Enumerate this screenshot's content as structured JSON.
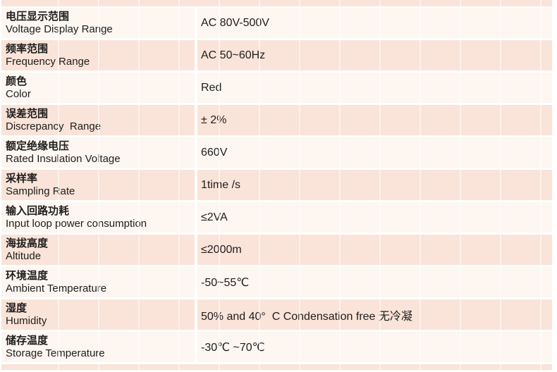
{
  "table": {
    "rows": [
      {
        "zh": "电压显示范围",
        "en": "Voltage Display Range",
        "value": "AC 80V-500V"
      },
      {
        "zh": "频率范围",
        "en": "Frequency Range",
        "value": "AC 50~60Hz"
      },
      {
        "zh": "颜色",
        "en": "Color",
        "value": "Red"
      },
      {
        "zh": "误差范围",
        "en": "Discrepancy  Range",
        "value": "± 2%"
      },
      {
        "zh": "额定绝缘电压",
        "en": "Rated Insulation Voltage",
        "value": "660V"
      },
      {
        "zh": "采样率",
        "en": "Sampling Rate",
        "value": "1time /s"
      },
      {
        "zh": "输入回路功耗",
        "en": "Input loop power consumption",
        "value": "≤2VA"
      },
      {
        "zh": "海拔高度",
        "en": "Altitude",
        "value": "≤2000m"
      },
      {
        "zh": "环境温度",
        "en": "Ambient Temperature",
        "value": "-50~55℃"
      },
      {
        "zh": "湿度",
        "en": "Humidity",
        "value": "50% and 40°  C Condensation free 无冷凝"
      },
      {
        "zh": "储存温度",
        "en": "Storage Temperature",
        "value": "-30℃ ~70℃"
      }
    ]
  },
  "colors": {
    "row_pink": "#fae3d8",
    "row_light": "#fdf6f1",
    "divider": "#ffffff",
    "text": "#1d1d1d"
  }
}
